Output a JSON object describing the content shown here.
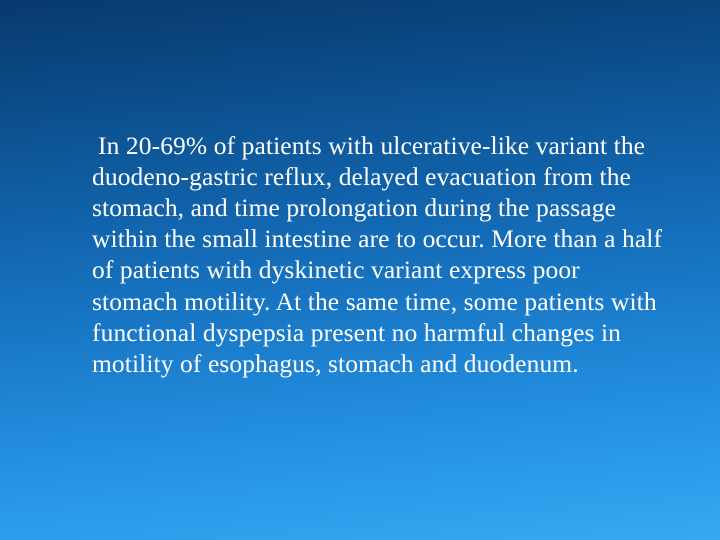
{
  "slide": {
    "background": {
      "gradient_stops": [
        "#083a6e",
        "#0a4680",
        "#0d5596",
        "#1265ae",
        "#1876c4",
        "#2088d8",
        "#2a99e8",
        "#36a8f2"
      ],
      "direction_deg": 175
    },
    "text_color": "#ffffff",
    "font_family": "Times New Roman",
    "body_fontsize_pt": 19,
    "line_height": 1.22,
    "bullets": [
      {
        "marker": "",
        "marker_color": "#cfe6ff",
        "text": "In 20-69% of patients with ulcerative-like variant the duodeno-gastric reflux, delayed evacuation from the stomach, and time prolongation during the passage within the small intestine are to occur. More than a half of patients with dyskinetic variant express poor stomach motility. At the same time, some patients with functional dyspepsia present no harmful changes in motility of esophagus, stomach and duodenum."
      }
    ]
  }
}
